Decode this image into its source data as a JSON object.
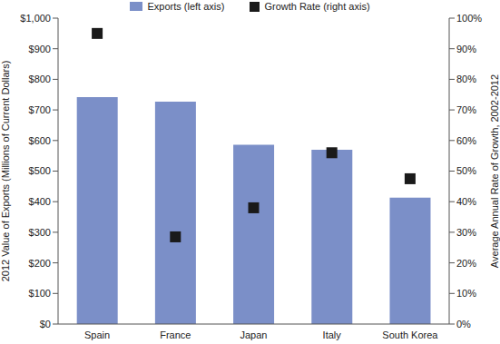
{
  "chart_data": {
    "type": "bar",
    "categories": [
      "Spain",
      "France",
      "Japan",
      "Italy",
      "South Korea"
    ],
    "series": [
      {
        "name": "Exports (left axis)",
        "type": "bar",
        "color": "#7b8fc8",
        "values": [
          742,
          727,
          586,
          570,
          413
        ]
      },
      {
        "name": "Growth Rate (right axis)",
        "type": "scatter",
        "marker": "square",
        "color": "#1a1a1a",
        "axis": "y2",
        "values": [
          95,
          28.5,
          38,
          56,
          47.5
        ]
      }
    ],
    "y_label": "2012 Value of Exports (Millions of Current Dollars)",
    "y2_label": "Average Annual Rate of Growth, 2002-2012",
    "ylim": [
      0,
      1000
    ],
    "yticks": [
      {
        "value": 0,
        "label": "$0"
      },
      {
        "value": 100,
        "label": "$100"
      },
      {
        "value": 200,
        "label": "$200"
      },
      {
        "value": 300,
        "label": "$300"
      },
      {
        "value": 400,
        "label": "$400"
      },
      {
        "value": 500,
        "label": "$500"
      },
      {
        "value": 600,
        "label": "$600"
      },
      {
        "value": 700,
        "label": "$700"
      },
      {
        "value": 800,
        "label": "$800"
      },
      {
        "value": 900,
        "label": "$900"
      },
      {
        "value": 1000,
        "label": "$1,000"
      }
    ],
    "y2lim": [
      0,
      100
    ],
    "y2ticks": [
      {
        "value": 0,
        "label": "0%"
      },
      {
        "value": 10,
        "label": "10%"
      },
      {
        "value": 20,
        "label": "20%"
      },
      {
        "value": 30,
        "label": "30%"
      },
      {
        "value": 40,
        "label": "40%"
      },
      {
        "value": 50,
        "label": "50%"
      },
      {
        "value": 60,
        "label": "60%"
      },
      {
        "value": 70,
        "label": "70%"
      },
      {
        "value": 80,
        "label": "80%"
      },
      {
        "value": 90,
        "label": "90%"
      },
      {
        "value": 100,
        "label": "100%"
      }
    ],
    "legend": "top",
    "grid": false
  }
}
